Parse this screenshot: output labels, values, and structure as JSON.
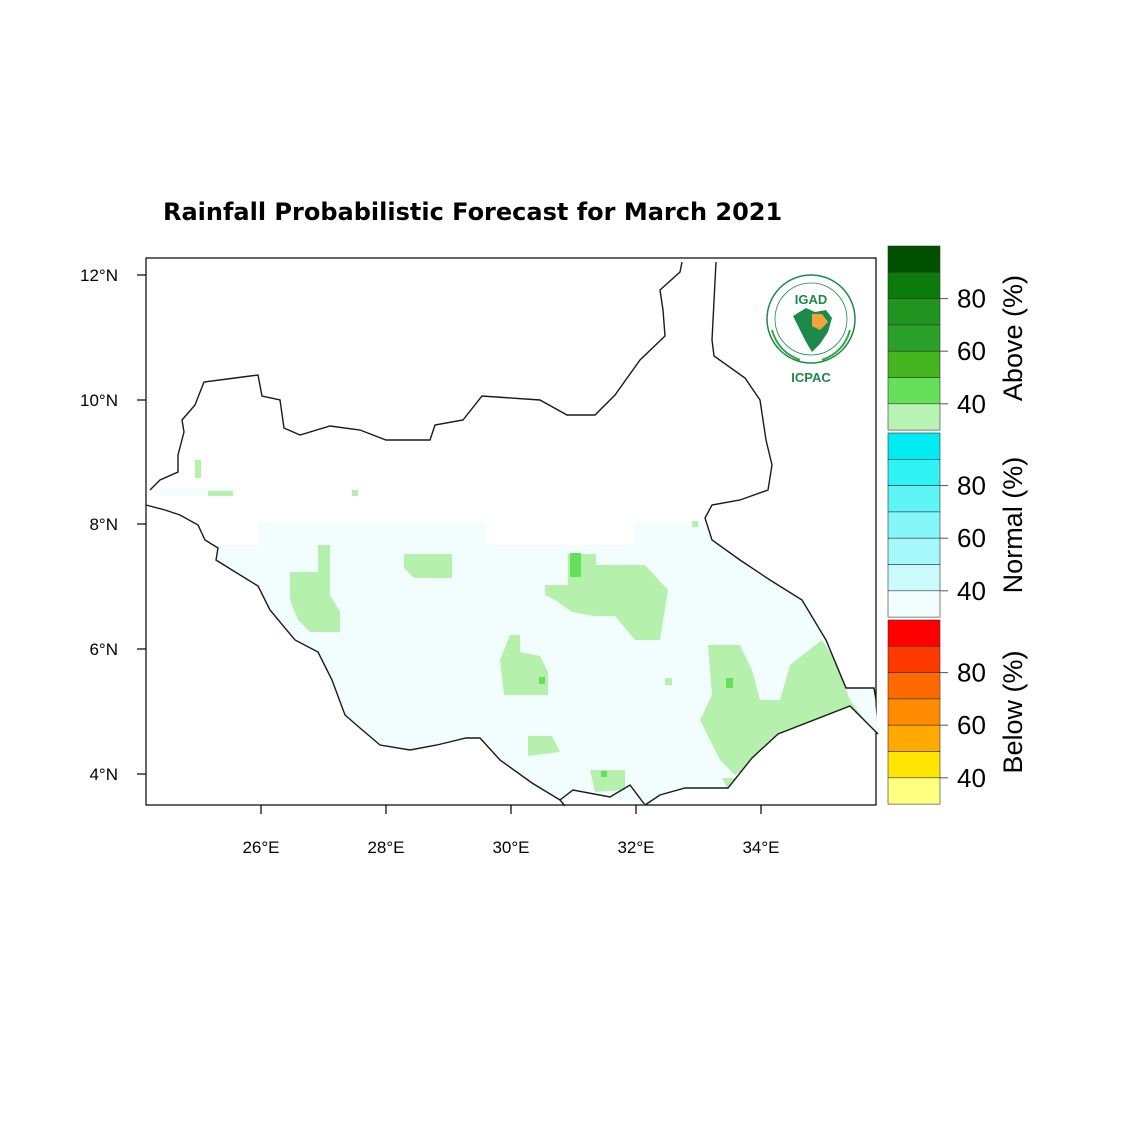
{
  "title": "Rainfall Probabilistic Forecast for March 2021",
  "map": {
    "lat_ticks": [
      "12°N",
      "10°N",
      "8°N",
      "6°N",
      "4°N"
    ],
    "lon_ticks": [
      "26°E",
      "28°E",
      "30°E",
      "32°E",
      "34°E"
    ],
    "lon_range": [
      24.2,
      35.8
    ],
    "lat_range": [
      3.5,
      12.2
    ]
  },
  "logo": {
    "name": "IGAD",
    "org": "ICPAC"
  },
  "colorbar": {
    "groups": [
      {
        "label": "Above (%)",
        "colors": [
          "#005000",
          "#0b7b0b",
          "#1f951f",
          "#2aa12a",
          "#45b51f",
          "#66e05a",
          "#b9f3b3"
        ],
        "tick_labels": [
          "80",
          "60",
          "40"
        ]
      },
      {
        "label": "Normal (%)",
        "colors": [
          "#00ecf2",
          "#2ff3f4",
          "#5df5f6",
          "#85f7f8",
          "#a6f9fa",
          "#c9fbfc",
          "#f2fdfd"
        ],
        "tick_labels": [
          "80",
          "60",
          "40"
        ]
      },
      {
        "label": "Below (%)",
        "colors": [
          "#ff0000",
          "#ff3a00",
          "#ff6a00",
          "#ff8c00",
          "#ffaa00",
          "#ffe400",
          "#ffff80"
        ],
        "tick_labels": [
          "80",
          "60",
          "40"
        ]
      }
    ]
  },
  "colors": {
    "normal_fill": "#f2fdfd",
    "above_light": "#b6f0ad",
    "above_medium": "#66e05a"
  }
}
